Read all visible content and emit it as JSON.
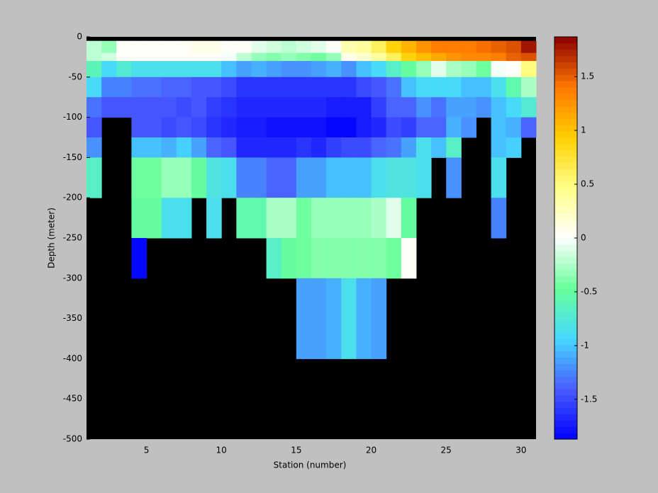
{
  "chart_data": {
    "type": "heatmap",
    "xlabel": "Station (number)",
    "ylabel": "Depth (meter)",
    "x": [
      1,
      2,
      3,
      4,
      5,
      6,
      7,
      8,
      9,
      10,
      11,
      12,
      13,
      14,
      15,
      16,
      17,
      18,
      19,
      20,
      21,
      22,
      23,
      24,
      25,
      26,
      27,
      28,
      29,
      30,
      31
    ],
    "y": [
      0,
      -5,
      -20,
      -30,
      -50,
      -75,
      -100,
      -125,
      -150,
      -200,
      -250,
      -300,
      -400,
      -500
    ],
    "z": [
      [
        null,
        null,
        null,
        null,
        null,
        null,
        null,
        null,
        null,
        null,
        null,
        null,
        null,
        null,
        null,
        null,
        null,
        null,
        null,
        null,
        null,
        null,
        null,
        null,
        null,
        null,
        null,
        null,
        null,
        null
      ],
      [
        -0.2,
        -0.3,
        0,
        0,
        0,
        0,
        0.05,
        0.1,
        0.1,
        0.05,
        0,
        -0.1,
        -0.15,
        -0.2,
        -0.15,
        -0.1,
        0,
        0.3,
        0.4,
        0.6,
        0.9,
        1.1,
        1.25,
        1.35,
        1.35,
        1.35,
        1.45,
        1.5,
        1.55,
        1.8
      ],
      [
        -0.2,
        -0.15,
        0,
        0,
        0,
        0,
        0,
        0.05,
        0,
        -0.05,
        -0.2,
        -0.3,
        -0.4,
        -0.35,
        -0.4,
        -0.45,
        -0.3,
        0.1,
        0.2,
        0.4,
        0.6,
        0.9,
        1.05,
        1.15,
        1.25,
        1.3,
        1.3,
        1.4,
        1.5,
        1.55
      ],
      [
        -0.6,
        -0.9,
        -0.75,
        -0.85,
        -0.85,
        -0.85,
        -0.85,
        -0.85,
        -0.85,
        -1.0,
        -1.15,
        -1.1,
        -1.15,
        -1.2,
        -1.2,
        -1.15,
        -1.1,
        -1.2,
        -1.05,
        -0.9,
        -0.7,
        -0.5,
        -0.3,
        -0.1,
        -0.25,
        -0.35,
        -0.45,
        -0.05,
        0,
        0.5
      ],
      [
        -0.9,
        -1.25,
        -1.25,
        -1.3,
        -1.3,
        -1.4,
        -1.35,
        -1.45,
        -1.45,
        -1.5,
        -1.6,
        -1.6,
        -1.6,
        -1.6,
        -1.6,
        -1.6,
        -1.6,
        -1.6,
        -1.5,
        -1.45,
        -1.3,
        -1.05,
        -0.9,
        -0.9,
        -0.9,
        -1.0,
        -1.0,
        -0.85,
        -0.55,
        -0.25
      ],
      [
        -1.3,
        -1.45,
        -1.45,
        -1.45,
        -1.45,
        -1.45,
        -1.5,
        -1.45,
        -1.55,
        -1.6,
        -1.65,
        -1.65,
        -1.65,
        -1.65,
        -1.65,
        -1.65,
        -1.75,
        -1.7,
        -1.7,
        -1.55,
        -1.4,
        -1.4,
        -1.2,
        -1.3,
        -1.15,
        -1.15,
        -1.2,
        -1.05,
        -0.9,
        -0.75
      ],
      [
        -1.45,
        null,
        null,
        -1.45,
        -1.45,
        -1.5,
        -1.45,
        -1.5,
        -1.6,
        -1.65,
        -1.7,
        -1.7,
        -1.8,
        -1.8,
        -1.8,
        -1.8,
        -1.85,
        -1.85,
        -1.75,
        -1.65,
        -1.5,
        -1.55,
        -1.4,
        -1.35,
        -1.1,
        -1.2,
        null,
        -1.0,
        -1.1,
        -1.4
      ],
      [
        -1.2,
        null,
        null,
        -1.05,
        -1.05,
        -1.1,
        -0.95,
        -1.15,
        -1.4,
        -1.45,
        -1.65,
        -1.65,
        -1.65,
        -1.65,
        -1.6,
        -1.65,
        -1.55,
        -1.5,
        -1.5,
        -1.4,
        -1.3,
        -1.15,
        -0.85,
        -1.05,
        -0.7,
        null,
        null,
        -1.0,
        -0.95,
        null
      ],
      [
        -0.7,
        null,
        null,
        -0.45,
        -0.45,
        -0.3,
        -0.3,
        -0.5,
        -0.8,
        -0.85,
        -1.25,
        -1.25,
        -1.4,
        -1.4,
        -1.15,
        -1.15,
        -1.05,
        -1.0,
        -1.0,
        -0.85,
        -0.8,
        -0.8,
        -0.85,
        null,
        -1.2,
        null,
        null,
        -0.85,
        null,
        null
      ],
      [
        null,
        null,
        null,
        -0.5,
        -0.5,
        -0.85,
        -0.85,
        null,
        -0.85,
        null,
        -0.55,
        -0.55,
        -0.25,
        -0.25,
        -0.45,
        -0.35,
        -0.35,
        -0.3,
        -0.3,
        -0.25,
        -0.1,
        -0.5,
        null,
        null,
        null,
        null,
        null,
        -1.25,
        null,
        null
      ],
      [
        null,
        null,
        null,
        -1.85,
        null,
        null,
        null,
        null,
        null,
        null,
        null,
        null,
        -0.65,
        -0.5,
        -0.45,
        -0.4,
        -0.4,
        -0.4,
        -0.4,
        -0.4,
        -0.45,
        0,
        null,
        null,
        null,
        null,
        null,
        null,
        null,
        null
      ],
      [
        null,
        null,
        null,
        null,
        null,
        null,
        null,
        null,
        null,
        null,
        null,
        null,
        null,
        null,
        -1.15,
        -1.15,
        -1.1,
        -0.85,
        -1.1,
        -1.15,
        null,
        null,
        null,
        null,
        null,
        null,
        null,
        null,
        null,
        null
      ],
      [
        null,
        null,
        null,
        null,
        null,
        null,
        null,
        null,
        null,
        null,
        null,
        null,
        null,
        null,
        null,
        null,
        null,
        null,
        null,
        null,
        null,
        null,
        null,
        null,
        null,
        null,
        null,
        null,
        null,
        null
      ]
    ],
    "xlim": [
      1,
      31
    ],
    "xticks": [
      5,
      10,
      15,
      20,
      25,
      30
    ],
    "ylim": [
      -500,
      0
    ],
    "yticks": [
      -500,
      -450,
      -400,
      -350,
      -300,
      -250,
      -200,
      -150,
      -100,
      -50,
      0
    ],
    "clim": [
      -1.87,
      1.87
    ],
    "cticks": [
      -1.5,
      -1,
      -0.5,
      0,
      0.5,
      1,
      1.5
    ],
    "colormap": [
      "#0000ff",
      "#4a5cff",
      "#45d8ff",
      "#66ff99",
      "#ffffff",
      "#ffff88",
      "#ffd000",
      "#ff7700",
      "#8b0000"
    ],
    "colormap_levels": 64,
    "background_color": "#000000"
  }
}
